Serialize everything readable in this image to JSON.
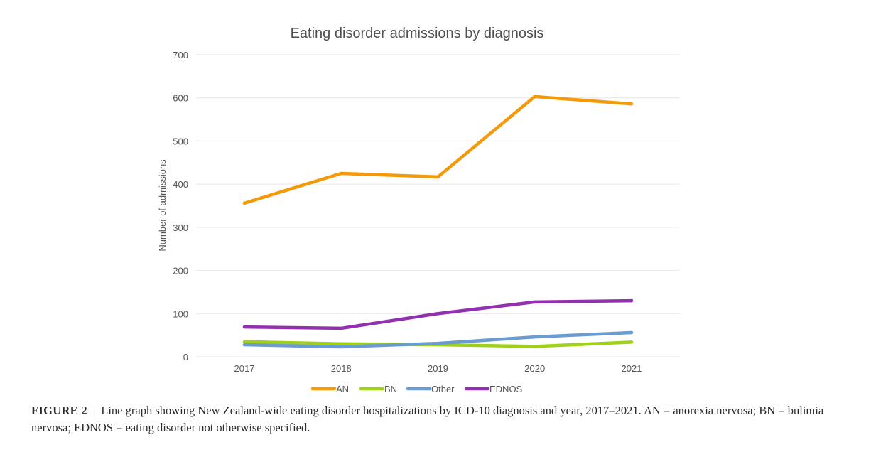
{
  "chart_data": {
    "type": "line",
    "title": "Eating disorder admissions by diagnosis",
    "xlabel": "",
    "ylabel": "Number of admissions",
    "categories": [
      "2017",
      "2018",
      "2019",
      "2020",
      "2021"
    ],
    "ylim": [
      0,
      700
    ],
    "yticks": [
      "0",
      "100",
      "200",
      "300",
      "400",
      "500",
      "600",
      "700"
    ],
    "grid": true,
    "legend_position": "bottom",
    "series": [
      {
        "name": "AN",
        "color": "#f39a0b",
        "values": [
          356,
          425,
          417,
          603,
          586
        ]
      },
      {
        "name": "BN",
        "color": "#9fd11a",
        "values": [
          35,
          30,
          28,
          24,
          34
        ]
      },
      {
        "name": "Other",
        "color": "#6a9bd1",
        "values": [
          28,
          23,
          31,
          46,
          56
        ]
      },
      {
        "name": "EDNOS",
        "color": "#9230b0",
        "values": [
          69,
          66,
          100,
          127,
          130
        ]
      }
    ]
  },
  "caption": {
    "label": "FIGURE 2",
    "separator": "|",
    "text": "Line graph showing New Zealand-wide eating disorder hospitalizations by ICD-10 diagnosis and year, 2017–2021. AN = anorexia nervosa; BN = bulimia nervosa; EDNOS = eating disorder not otherwise specified."
  }
}
